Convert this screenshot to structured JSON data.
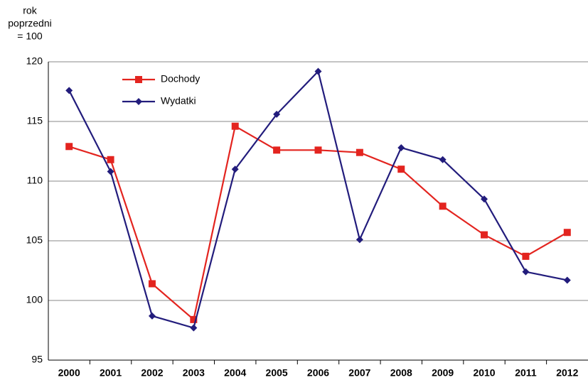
{
  "chart_data": {
    "type": "line",
    "ylabel": [
      "rok",
      "poprzedni",
      "= 100"
    ],
    "categories": [
      "2000",
      "2001",
      "2002",
      "2003",
      "2004",
      "2005",
      "2006",
      "2007",
      "2008",
      "2009",
      "2010",
      "2011",
      "2012"
    ],
    "series": [
      {
        "name": "Dochody",
        "color": "#e3241f",
        "marker": "square",
        "values": [
          112.9,
          111.8,
          101.4,
          98.4,
          114.6,
          112.6,
          112.6,
          112.4,
          111.0,
          107.9,
          105.5,
          103.7,
          105.7
        ]
      },
      {
        "name": "Wydatki",
        "color": "#221c7c",
        "marker": "diamond",
        "values": [
          117.6,
          110.8,
          98.7,
          97.7,
          111.0,
          115.6,
          119.2,
          105.1,
          112.8,
          111.8,
          108.5,
          102.4,
          101.7
        ]
      }
    ],
    "ylim": [
      95,
      120
    ],
    "yticks": [
      95,
      100,
      105,
      110,
      115,
      120
    ],
    "grid": true,
    "legend": "upper left"
  }
}
